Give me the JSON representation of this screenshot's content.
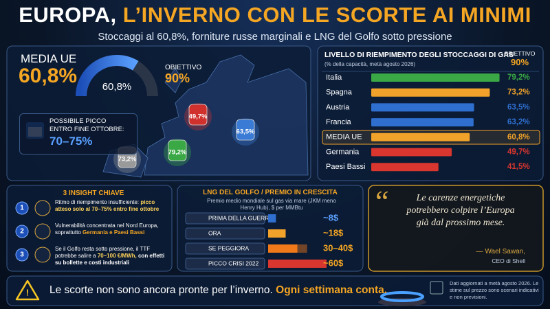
{
  "header": {
    "title_part1": "EUROPA,",
    "title_part2": "L’INVERNO CON LE SCORTE AI MINIMI",
    "subtitle": "Stoccaggi al 60,8%, forniture russe marginali e LNG del Golfo sotto pressione"
  },
  "gauge": {
    "label": "MEDIA UE",
    "value": 60.8,
    "value_label": "60,8%",
    "center_label": "60,8%",
    "target_label": "OBIETTIVO",
    "target": 90,
    "target_value_label": "90%"
  },
  "peak": {
    "line1": "POSSIBILE PICCO",
    "line2": "ENTRO FINE OTTOBRE:",
    "range": "70–75%"
  },
  "map": {
    "markers": [
      {
        "label": "49,7%",
        "color": "#d0312d"
      },
      {
        "label": "63,5%",
        "color": "#3a7bd5"
      },
      {
        "label": "73,2%",
        "color": "#9a9a9a"
      },
      {
        "label": "79,2%",
        "color": "#3aa845"
      }
    ]
  },
  "chart_data": [
    {
      "type": "bar",
      "title": "LIVELLO DI RIEMPIMENTO DEGLI STOCCAGGI DI GAS",
      "subtitle": "(% della capacità, metà agosto 2026)",
      "target_label": "OBIETTIVO",
      "target_value_label": "90%",
      "categories": [
        "Italia",
        "Spagna",
        "Austria",
        "Francia",
        "MEDIA UE",
        "Germania",
        "Paesi Bassi"
      ],
      "values": [
        79.2,
        73.2,
        63.5,
        63.2,
        60.8,
        49.7,
        41.5
      ],
      "value_labels": [
        "79,2%",
        "73,2%",
        "63,5%",
        "63,2%",
        "60,8%",
        "49,7%",
        "41,5%"
      ],
      "colors": [
        "#3aa845",
        "#f0a22a",
        "#2f6fd0",
        "#2f6fd0",
        "#f0a22a",
        "#d8362f",
        "#d8362f"
      ],
      "xlim": [
        0,
        90
      ]
    },
    {
      "type": "bar",
      "title": "LNG DEL GOLFO / PREMIO IN CRESCITA",
      "subtitle": "Premio medio mondiale sul gas via mare (JKM meno Henry Hub), $ per MMBtu",
      "categories": [
        "PRIMA DELLA GUERRA",
        "ORA",
        "SE PEGGIORA",
        "PICCO CRISI 2022"
      ],
      "values": [
        8,
        18,
        30,
        60
      ],
      "upper": [
        null,
        null,
        40,
        null
      ],
      "value_labels": [
        "~8$",
        "~18$",
        "30–40$",
        "~60$"
      ],
      "colors": [
        "#2f6fd0",
        "#f0a22a",
        "#f07a1a",
        "#d8362f"
      ],
      "xlim": [
        0,
        60
      ]
    }
  ],
  "insights": {
    "title": "3 INSIGHT CHIAVE",
    "items": [
      {
        "number": "1",
        "text": "Ritmo di riempimento insufficiente:",
        "highlight": "picco atteso solo al 70–75% entro fine ottobre"
      },
      {
        "number": "2",
        "text": "Vulnerabilità concentrata nel Nord Europa, soprattutto",
        "highlight": "Germania e Paesi Bassi"
      },
      {
        "number": "3",
        "text": "Se il Golfo resta sotto pressione, il TTF potrebbe salire a",
        "highlight": "70–100 €/MWh,",
        "tail": "con effetti su bollette e costi industriali"
      }
    ]
  },
  "quote": {
    "text": "Le carenze energetiche potrebbero colpire l’Europa già dal prossimo mese.",
    "author": "— Wael Sawan,",
    "role": "CEO di Shell"
  },
  "footer": {
    "text": "Le scorte non sono ancora pronte per l’inverno.",
    "emphasis": "Ogni settimana conta.",
    "note": "Dati aggiornati a metà agosto 2026. Le stime sul prezzo sono scenari indicativi e non previsioni."
  }
}
